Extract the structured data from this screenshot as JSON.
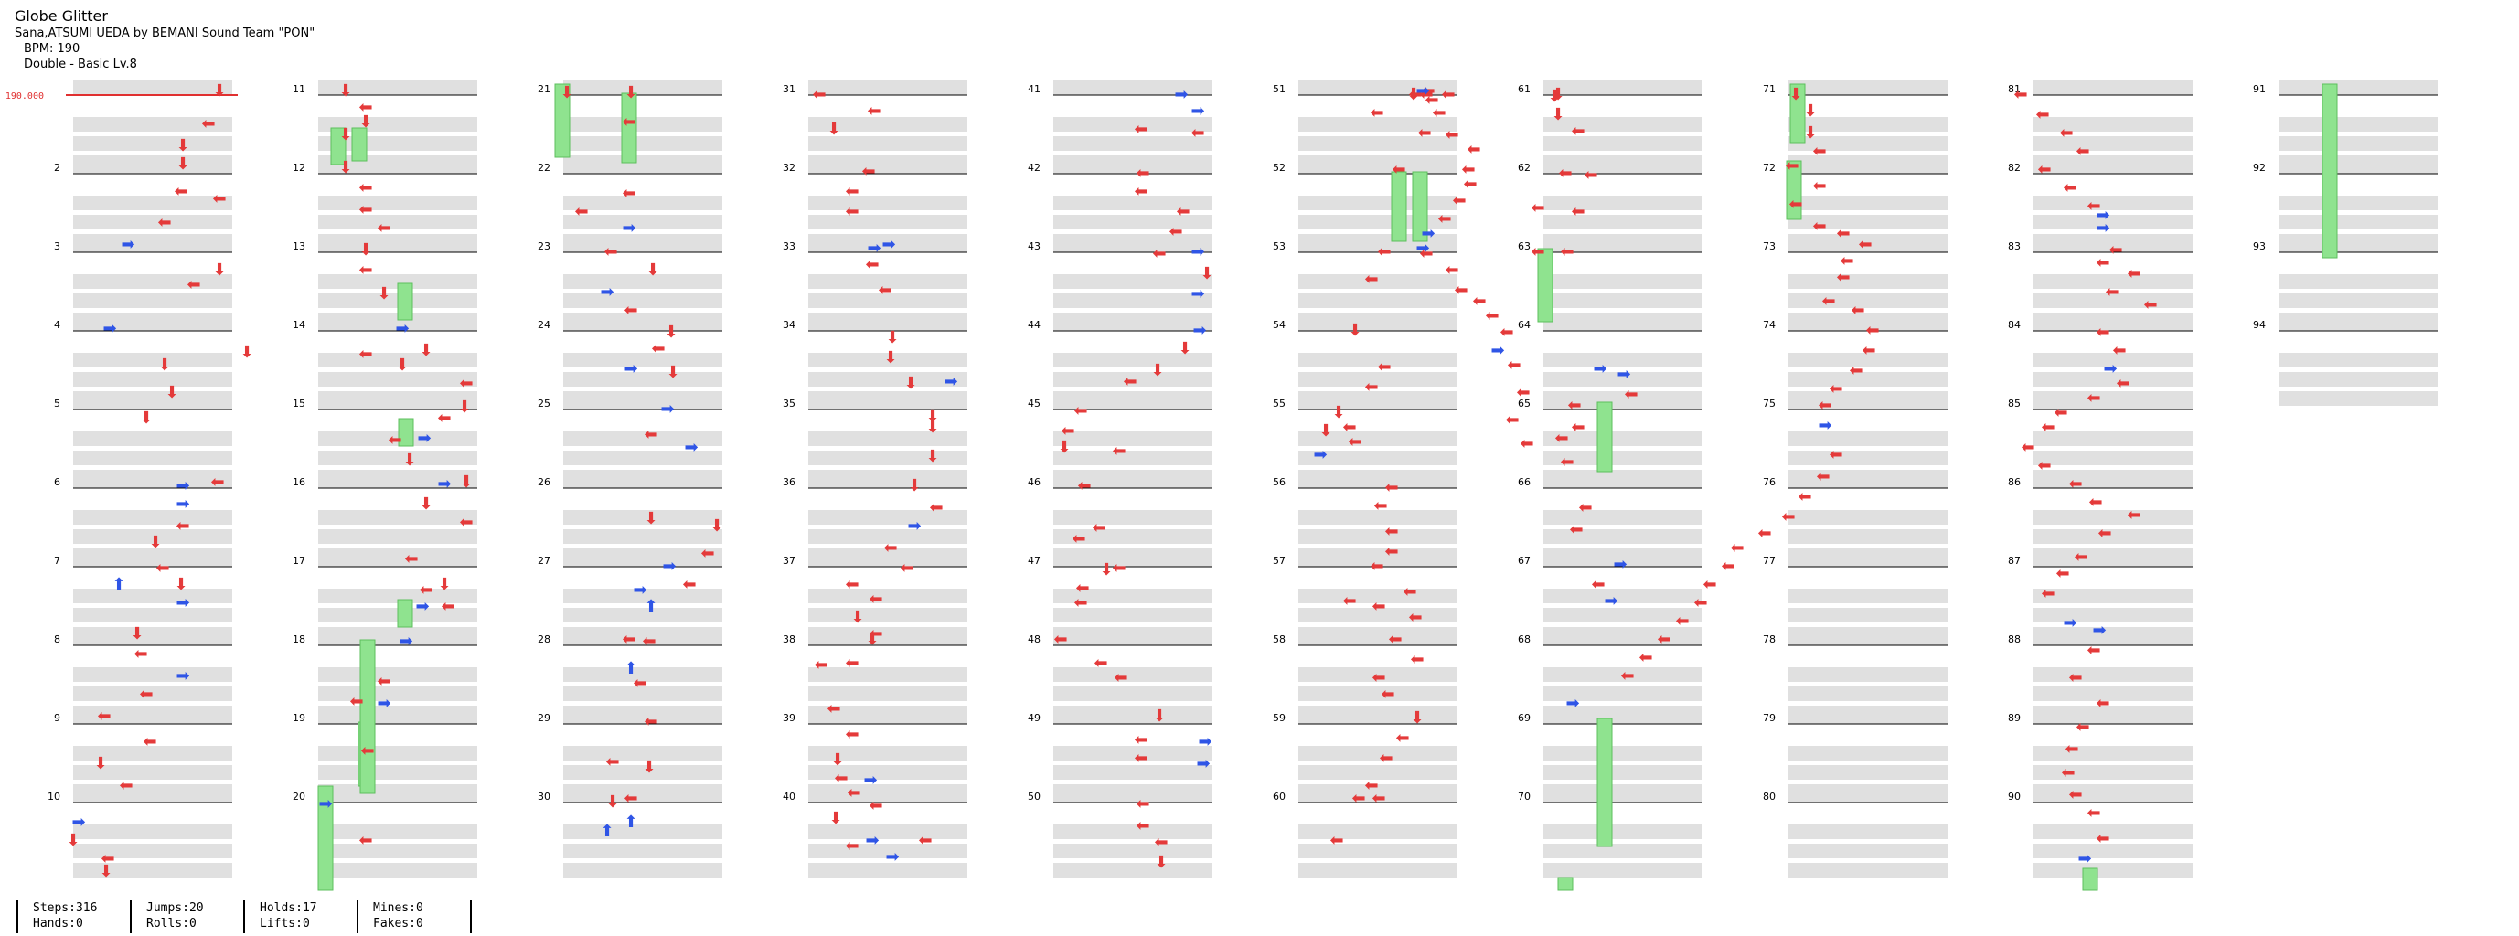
{
  "song": {
    "title": "Globe Glitter",
    "artist_line": "Sana,ATSUMI UEDA by BEMANI Sound Team \"PON\"",
    "bpm_line": "BPM: 190",
    "difficulty_line": "Double - Basic  Lv.8"
  },
  "bpm_marker": {
    "label": "190.000",
    "color": "#e03030"
  },
  "colors": {
    "arrow_red": "#e43a3a",
    "arrow_blue": "#2f55e6",
    "hold_green": "#8fe38f",
    "stripe_gray": "#e0e0e0",
    "measure_line": "#000000"
  },
  "measure_numbers": [
    "2",
    "3",
    "4",
    "5",
    "6",
    "7",
    "8",
    "9",
    "10",
    "11",
    "12",
    "13",
    "14",
    "15",
    "16",
    "17",
    "18",
    "19",
    "20",
    "21",
    "22",
    "23",
    "24",
    "25",
    "26",
    "27",
    "28",
    "29",
    "30",
    "31",
    "32",
    "33",
    "34",
    "35",
    "36",
    "37",
    "38",
    "39",
    "40",
    "41",
    "42",
    "43",
    "44",
    "45",
    "46",
    "47",
    "48",
    "49",
    "50",
    "51",
    "52",
    "53",
    "54",
    "55",
    "56",
    "57",
    "58",
    "59",
    "60",
    "61",
    "62",
    "63",
    "64",
    "65",
    "66",
    "67",
    "68",
    "69",
    "70",
    "71",
    "72",
    "73",
    "74",
    "75",
    "76",
    "77",
    "78",
    "79",
    "80",
    "81",
    "82",
    "83",
    "84",
    "85",
    "86",
    "87",
    "88",
    "89",
    "90",
    "91",
    "92",
    "93",
    "94"
  ],
  "stats": {
    "steps": "Steps:316",
    "hands": "Hands:0",
    "jumps": "Jumps:20",
    "rolls": "Rolls:0",
    "holds": "Holds:17",
    "lifts": "Lifts:0",
    "mines": "Mines:0",
    "fakes": "Fakes:0"
  }
}
